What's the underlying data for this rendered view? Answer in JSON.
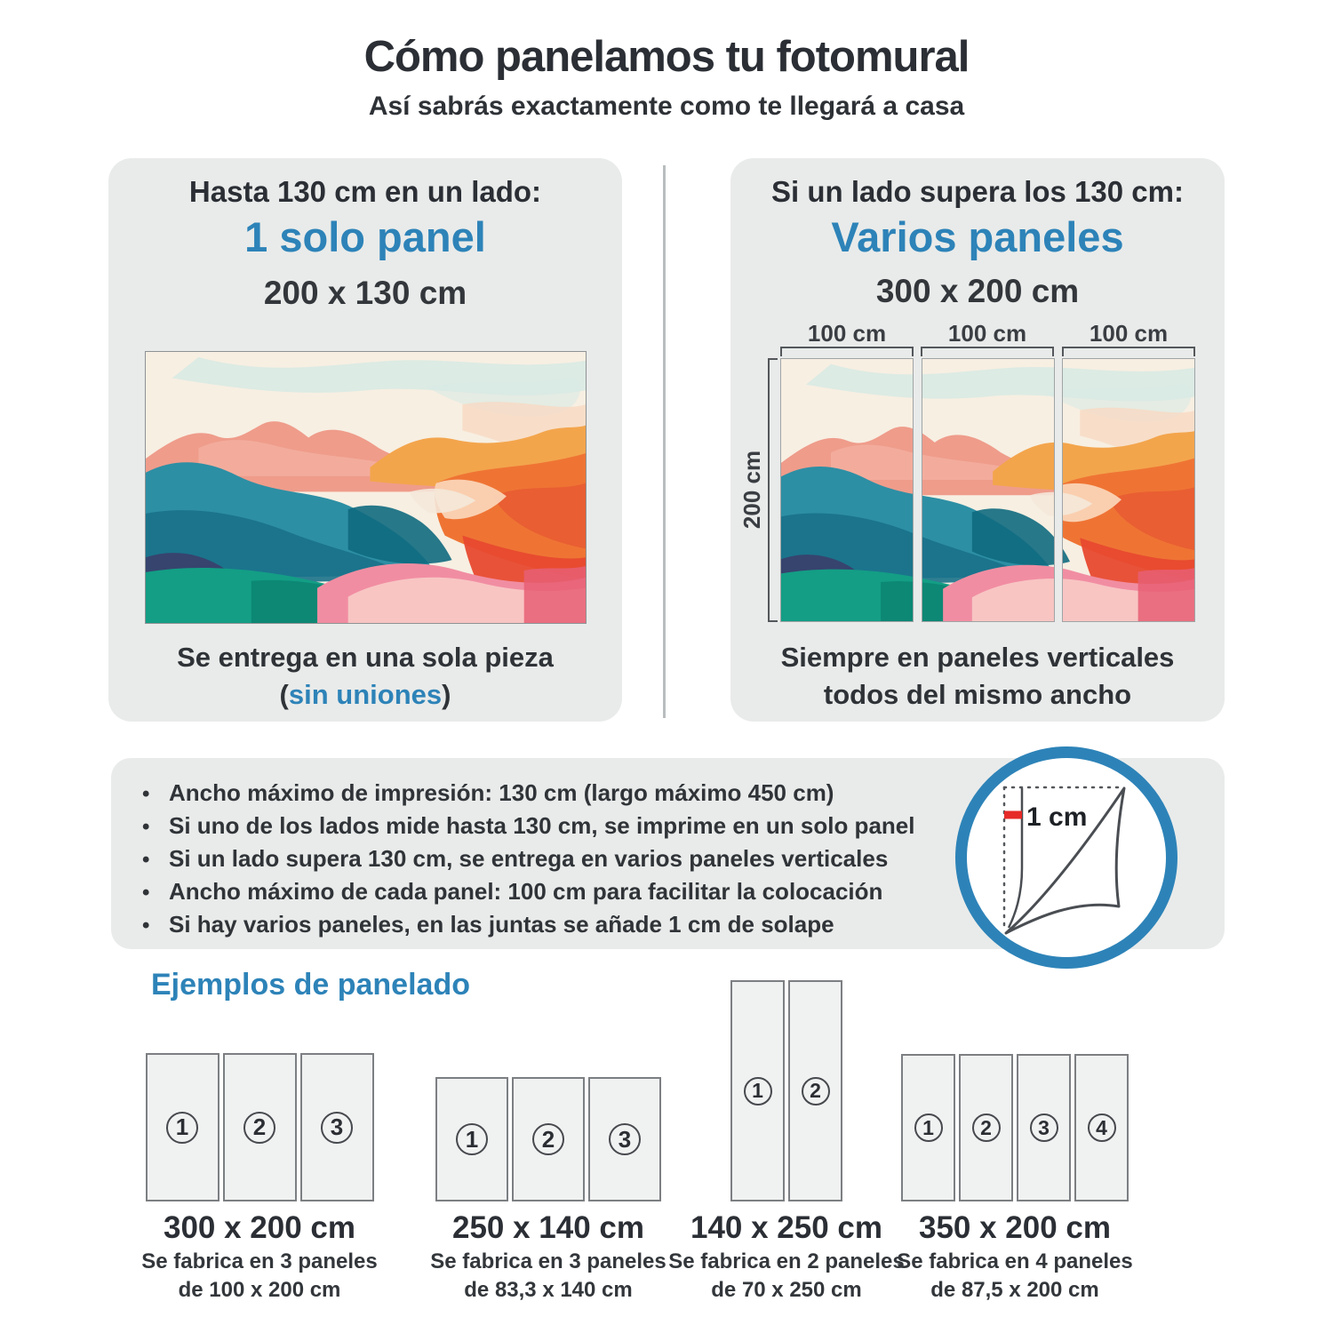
{
  "page": {
    "title": "Cómo panelamos tu fotomural",
    "subtitle": "Así sabrás exactamente como te llegará a casa"
  },
  "accent_color": "#2d83b8",
  "cards": {
    "single": {
      "condition": "Hasta 130 cm en un lado:",
      "highlight": "1 solo panel",
      "size": "200 x 130 cm",
      "caption_line1": "Se entrega en una sola pieza",
      "caption_paren_open": "(",
      "caption_highlight": "sin uniones",
      "caption_paren_close": ")"
    },
    "multi": {
      "condition": "Si un lado supera los 130 cm:",
      "highlight": "Varios paneles",
      "size": "300 x 200 cm",
      "width_labels": [
        "100 cm",
        "100 cm",
        "100 cm"
      ],
      "height_label": "200 cm",
      "caption_line1": "Siempre en paneles verticales",
      "caption_line2": "todos del mismo ancho"
    }
  },
  "info_box": {
    "bullets": [
      "Ancho máximo de impresión: 130 cm (largo máximo 450 cm)",
      "Si uno de los lados mide hasta 130 cm, se imprime en un solo panel",
      "Si un lado supera 130 cm, se entrega en varios paneles verticales",
      "Ancho máximo de cada panel: 100 cm para facilitar la colocación",
      "Si hay varios paneles, en las juntas se añade 1 cm de solape"
    ],
    "overlap_label": "1 cm"
  },
  "examples_section": {
    "heading": "Ejemplos de panelado",
    "examples": [
      {
        "size": "300 x 200 cm",
        "desc_line1": "Se fabrica en 3 paneles",
        "desc_line2": "de 100 x 200 cm",
        "panels": [
          "1",
          "2",
          "3"
        ]
      },
      {
        "size": "250 x 140 cm",
        "desc_line1": "Se fabrica en 3 paneles",
        "desc_line2": "de 83,3 x 140 cm",
        "panels": [
          "1",
          "2",
          "3"
        ]
      },
      {
        "size": "140 x 250 cm",
        "desc_line1": "Se fabrica en 2 paneles",
        "desc_line2": "de 70 x 250 cm",
        "panels": [
          "1",
          "2"
        ]
      },
      {
        "size": "350 x 200 cm",
        "desc_line1": "Se fabrica en 4 paneles",
        "desc_line2": "de 87,5 x 200 cm",
        "panels": [
          "1",
          "2",
          "3",
          "4"
        ]
      }
    ]
  }
}
